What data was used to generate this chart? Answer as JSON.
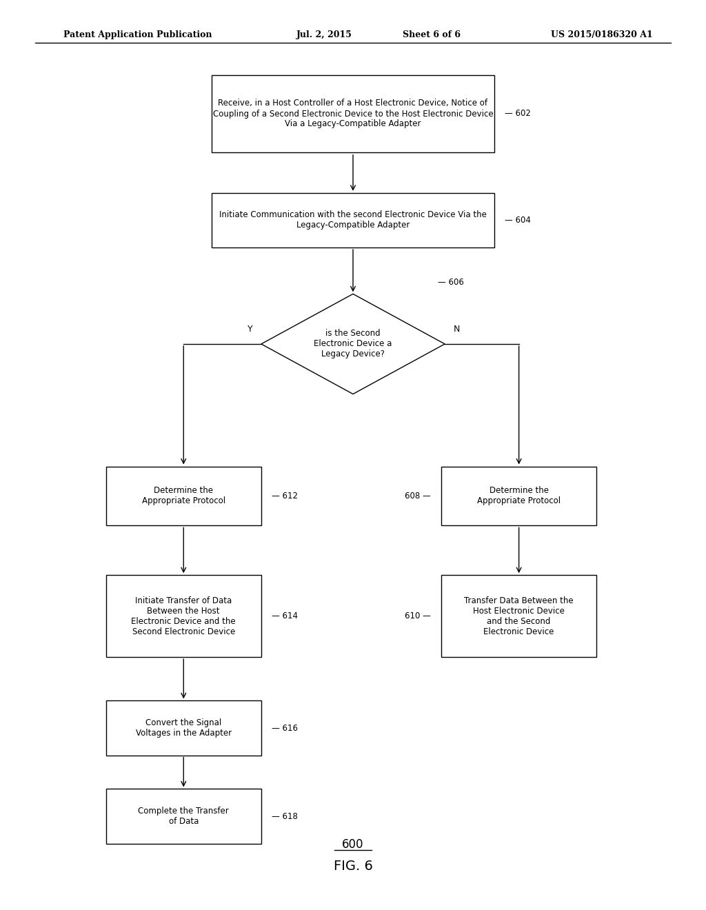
{
  "bg_color": "#ffffff",
  "text_color": "#000000",
  "header_text": "Patent Application Publication",
  "header_date": "Jul. 2, 2015",
  "header_sheet": "Sheet 6 of 6",
  "header_patent": "US 2015/0186320 A1",
  "figure_label": "FIG. 6",
  "figure_num": "600"
}
